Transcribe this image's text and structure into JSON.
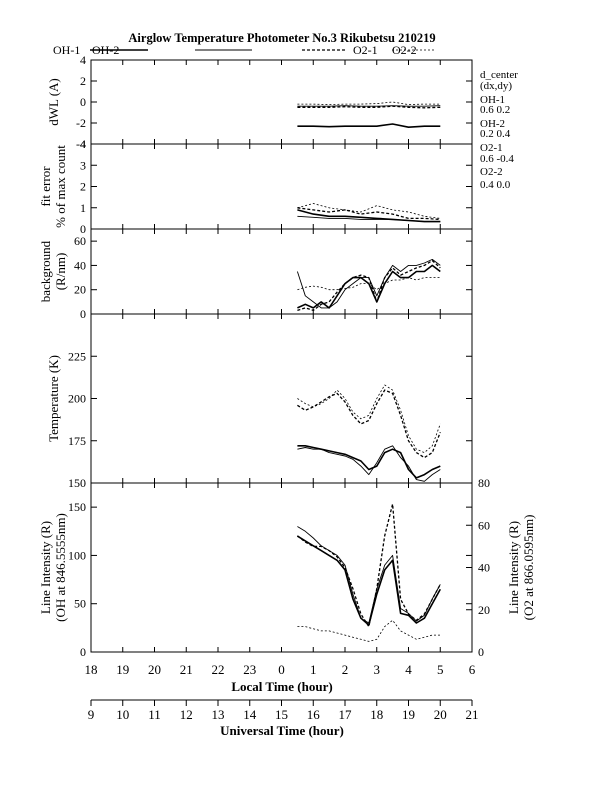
{
  "header": {
    "title": "Airglow Temperature Photometer No.3  Rikubetsu    210219"
  },
  "legend": [
    {
      "label": "OH-1",
      "dash": "solid",
      "width": 1.6
    },
    {
      "label": "OH-2",
      "dash": "solid",
      "width": 0.9
    },
    {
      "label": "O2-1",
      "dash": "3,2",
      "width": 1.3
    },
    {
      "label": "O2-2",
      "dash": "2,2",
      "width": 0.8
    }
  ],
  "dcenter": {
    "title": "d_center",
    "subtitle": "(dx,dy)",
    "items": [
      {
        "label": "OH-1",
        "value": "0.6   0.2"
      },
      {
        "label": "OH-2",
        "value": "0.2   0.4"
      },
      {
        "label": "O2-1",
        "value": "0.6   -0.4"
      },
      {
        "label": "O2-2",
        "value": "0.4   0.0"
      }
    ]
  },
  "x_axes": {
    "local": {
      "label": "Local Time (hour)",
      "ticks": [
        "18",
        "19",
        "20",
        "21",
        "22",
        "23",
        "0",
        "1",
        "2",
        "3",
        "4",
        "5",
        "6"
      ]
    },
    "universal": {
      "label": "Universal Time (hour)",
      "ticks": [
        "9",
        "10",
        "11",
        "12",
        "13",
        "14",
        "15",
        "16",
        "17",
        "18",
        "19",
        "20",
        "21"
      ]
    }
  },
  "chart_data": [
    {
      "type": "line",
      "panel": "dwl",
      "ylabel": "dWL (A)",
      "ylim": [
        -4,
        4
      ],
      "yticks": [
        -4,
        -2,
        0,
        2,
        4
      ],
      "x": [
        0.5,
        1.0,
        1.5,
        2.0,
        2.5,
        3.0,
        3.5,
        4.0,
        4.5,
        5.0
      ],
      "series": [
        {
          "name": "OH-1",
          "values": [
            -2.3,
            -2.3,
            -2.35,
            -2.3,
            -2.3,
            -2.3,
            -2.1,
            -2.4,
            -2.3,
            -2.3
          ]
        },
        {
          "name": "OH-2",
          "values": [
            -0.4,
            -0.4,
            -0.4,
            -0.35,
            -0.4,
            -0.4,
            -0.35,
            -0.4,
            -0.4,
            -0.35
          ]
        },
        {
          "name": "O2-1",
          "values": [
            -0.5,
            -0.5,
            -0.5,
            -0.45,
            -0.5,
            -0.5,
            -0.4,
            -0.5,
            -0.55,
            -0.5
          ]
        },
        {
          "name": "O2-2",
          "values": [
            -0.2,
            -0.2,
            -0.25,
            -0.2,
            -0.2,
            -0.15,
            0.0,
            -0.25,
            -0.2,
            -0.2
          ]
        }
      ]
    },
    {
      "type": "line",
      "panel": "fit_error",
      "ylabel": "fit error",
      "ylabel2": "% of max count",
      "ylim": [
        0,
        4
      ],
      "yticks": [
        0,
        1,
        2,
        3,
        4
      ],
      "x": [
        0.5,
        1.0,
        1.5,
        2.0,
        2.5,
        3.0,
        3.5,
        4.0,
        4.5,
        5.0
      ],
      "series": [
        {
          "name": "OH-1",
          "values": [
            0.9,
            0.7,
            0.6,
            0.6,
            0.55,
            0.5,
            0.45,
            0.4,
            0.35,
            0.35
          ]
        },
        {
          "name": "OH-2",
          "values": [
            0.6,
            0.55,
            0.5,
            0.5,
            0.45,
            0.45,
            0.45,
            0.4,
            0.35,
            0.35
          ]
        },
        {
          "name": "O2-1",
          "values": [
            1.0,
            0.9,
            0.8,
            0.9,
            0.7,
            0.8,
            0.7,
            0.5,
            0.5,
            0.45
          ]
        },
        {
          "name": "O2-2",
          "values": [
            1.0,
            1.2,
            1.0,
            0.9,
            0.8,
            1.1,
            0.9,
            0.8,
            0.6,
            0.5
          ]
        }
      ]
    },
    {
      "type": "line",
      "panel": "background",
      "ylabel": "background",
      "ylabel2": "(R/nm)",
      "ylim": [
        0,
        70
      ],
      "yticks": [
        0,
        20,
        40,
        60
      ],
      "x": [
        0.5,
        0.75,
        1.0,
        1.25,
        1.5,
        1.75,
        2.0,
        2.25,
        2.5,
        2.75,
        3.0,
        3.25,
        3.5,
        3.75,
        4.0,
        4.25,
        4.5,
        4.75,
        5.0
      ],
      "series": [
        {
          "name": "OH-1",
          "values": [
            5,
            8,
            5,
            10,
            5,
            15,
            25,
            30,
            30,
            25,
            10,
            25,
            35,
            30,
            30,
            35,
            35,
            40,
            35
          ]
        },
        {
          "name": "OH-2",
          "values": [
            35,
            15,
            10,
            5,
            5,
            10,
            20,
            25,
            30,
            30,
            15,
            30,
            40,
            35,
            40,
            40,
            42,
            45,
            40
          ]
        },
        {
          "name": "O2-1",
          "values": [
            3,
            5,
            3,
            8,
            10,
            18,
            25,
            30,
            32,
            30,
            10,
            30,
            38,
            32,
            35,
            38,
            40,
            44,
            38
          ]
        },
        {
          "name": "O2-2",
          "values": [
            20,
            22,
            23,
            22,
            20,
            20,
            21,
            22,
            25,
            25,
            20,
            25,
            28,
            28,
            30,
            28,
            30,
            30,
            30
          ]
        }
      ]
    },
    {
      "type": "line",
      "panel": "temperature",
      "ylabel": "Temperature (K)",
      "ylim": [
        150,
        250
      ],
      "yticks": [
        150,
        175,
        200,
        225
      ],
      "x": [
        0.5,
        0.75,
        1.0,
        1.25,
        1.5,
        1.75,
        2.0,
        2.25,
        2.5,
        2.75,
        3.0,
        3.25,
        3.5,
        3.75,
        4.0,
        4.25,
        4.5,
        4.75,
        5.0
      ],
      "series": [
        {
          "name": "OH-1",
          "values": [
            172,
            172,
            171,
            170,
            169,
            168,
            167,
            165,
            163,
            158,
            160,
            168,
            170,
            168,
            158,
            153,
            155,
            158,
            160
          ]
        },
        {
          "name": "OH-2",
          "values": [
            170,
            171,
            170,
            170,
            168,
            167,
            166,
            164,
            160,
            155,
            162,
            170,
            172,
            165,
            160,
            152,
            151,
            155,
            158
          ]
        },
        {
          "name": "O2-1",
          "values": [
            196,
            193,
            195,
            198,
            201,
            203,
            198,
            190,
            185,
            187,
            197,
            205,
            203,
            190,
            175,
            168,
            165,
            168,
            180
          ]
        },
        {
          "name": "O2-2",
          "values": [
            200,
            197,
            195,
            197,
            200,
            205,
            200,
            192,
            188,
            190,
            200,
            208,
            205,
            193,
            178,
            170,
            168,
            172,
            185
          ]
        }
      ]
    },
    {
      "type": "line",
      "panel": "line_intensity",
      "ylabel": "Line Intensity (R)",
      "ylabel2": "(OH at 846.5555nm)",
      "ylabel_right": "Line Intensity (R)",
      "ylabel_right2": "(O2 at 866.0595nm)",
      "ylim": [
        0,
        175
      ],
      "yticks": [
        0,
        50,
        100,
        150
      ],
      "ylim_right": [
        0,
        80
      ],
      "yticks_right": [
        0,
        20,
        40,
        60,
        80
      ],
      "x": [
        0.5,
        0.75,
        1.0,
        1.25,
        1.5,
        1.75,
        2.0,
        2.25,
        2.5,
        2.75,
        3.0,
        3.25,
        3.5,
        3.75,
        4.0,
        4.25,
        4.5,
        4.75,
        5.0
      ],
      "series": [
        {
          "name": "OH-1",
          "axis": "left",
          "values": [
            120,
            115,
            110,
            105,
            100,
            95,
            85,
            55,
            35,
            28,
            60,
            85,
            95,
            40,
            38,
            30,
            35,
            50,
            65
          ]
        },
        {
          "name": "OH-2",
          "axis": "left",
          "values": [
            130,
            125,
            118,
            110,
            105,
            100,
            90,
            60,
            35,
            30,
            65,
            90,
            100,
            45,
            40,
            32,
            38,
            55,
            70
          ]
        },
        {
          "name": "O2-1",
          "axis": "right",
          "values": [
            55,
            52,
            50,
            50,
            48,
            45,
            40,
            30,
            18,
            12,
            30,
            55,
            70,
            25,
            18,
            15,
            18,
            25,
            32
          ]
        },
        {
          "name": "O2-2",
          "axis": "right",
          "values": [
            12,
            12,
            11,
            10,
            10,
            9,
            8,
            7,
            6,
            5,
            6,
            12,
            15,
            10,
            8,
            6,
            7,
            8,
            8
          ]
        }
      ]
    }
  ]
}
